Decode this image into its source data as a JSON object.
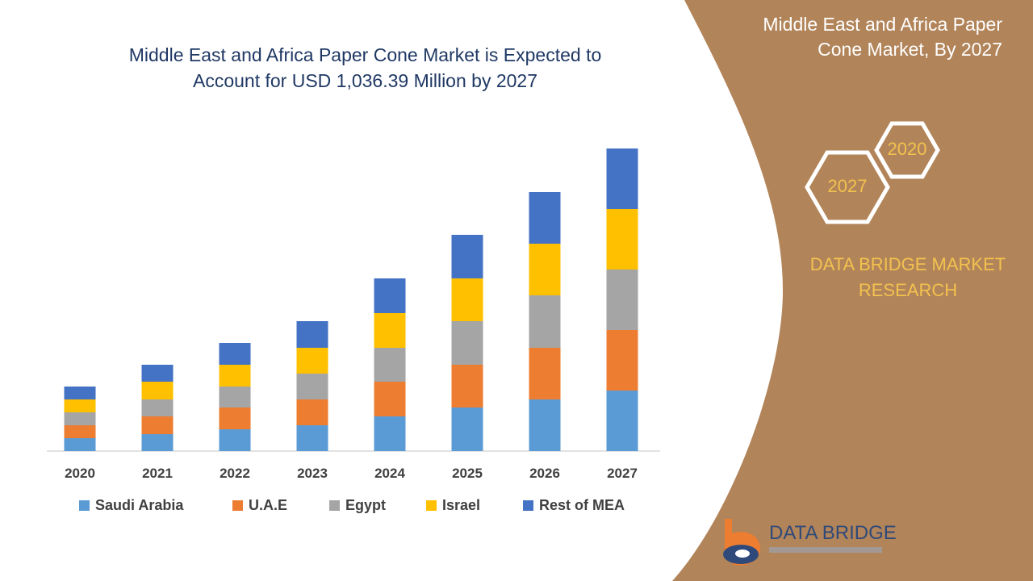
{
  "title_lines": [
    "Middle East and Africa Paper Cone Market is Expected to",
    "Account for USD 1,036.39 Million by 2027"
  ],
  "side_panel": {
    "title_lines": [
      "Middle East and Africa Paper",
      "Cone Market, By 2027"
    ],
    "hex_labels": [
      "2020",
      "2027"
    ],
    "brand_lines": [
      "DATA BRIDGE MARKET",
      "RESEARCH"
    ],
    "logo_name": "DATA BRIDGE"
  },
  "colors": {
    "panel": "#b28459",
    "title": "#1f3864",
    "hex_text": "#f2c24f",
    "axis": "#d9d9d9"
  },
  "chart_data": {
    "type": "bar",
    "stacked": true,
    "categories": [
      "2020",
      "2021",
      "2022",
      "2023",
      "2024",
      "2025",
      "2026",
      "2027"
    ],
    "series": [
      {
        "name": "Saudi Arabia",
        "color": "#5b9bd5",
        "values": [
          16,
          21,
          27,
          32,
          43,
          54,
          64,
          75
        ]
      },
      {
        "name": "U.A.E",
        "color": "#ed7d31",
        "values": [
          16,
          22,
          27,
          32,
          43,
          53,
          64,
          75
        ]
      },
      {
        "name": "Egypt",
        "color": "#a5a5a5",
        "values": [
          16,
          21,
          26,
          32,
          42,
          54,
          65,
          75
        ]
      },
      {
        "name": "Israel",
        "color": "#ffc000",
        "values": [
          16,
          22,
          27,
          32,
          43,
          53,
          64,
          75
        ]
      },
      {
        "name": "Rest of MEA",
        "color": "#4472c4",
        "values": [
          16,
          21,
          27,
          33,
          43,
          54,
          64,
          75
        ]
      }
    ],
    "ylim": [
      0,
      380
    ],
    "grid": false,
    "legend_position": "bottom"
  }
}
